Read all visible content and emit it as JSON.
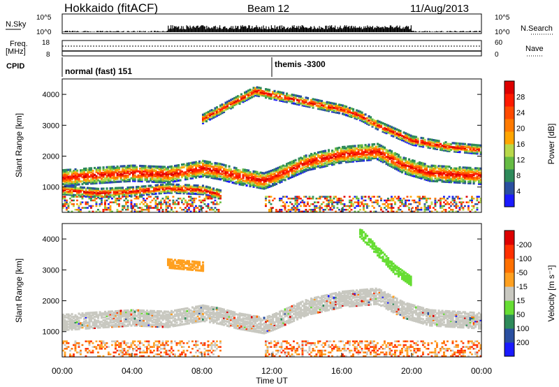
{
  "header": {
    "station": "Hokkaido (fitACF)",
    "beam": "Beam 12",
    "date": "11/Aug/2013"
  },
  "summary_panels": {
    "nsky_label": "N.Sky",
    "nsky_ticks": [
      "10^5",
      "10^0"
    ],
    "nsearch_label": "N.Search",
    "freq_label_line1": "Freq.",
    "freq_label_line2": "[MHz]",
    "freq_ticks": [
      "18",
      "8"
    ],
    "nave_label": "Nave",
    "nave_ticks": [
      "60",
      "0"
    ],
    "cpid_label": "CPID",
    "cpid_segments": [
      {
        "label": "normal (fast) 151",
        "start_hour": 0
      },
      {
        "label": "themis -3300",
        "start_hour": 12
      }
    ]
  },
  "colors": {
    "power_scale": [
      "#1a1aff",
      "#2a4fa0",
      "#2e8a5a",
      "#66bb44",
      "#b8d84a",
      "#ffa500",
      "#ff7a00",
      "#ff4a00",
      "#ff1a00",
      "#dd0000"
    ],
    "velocity_scale": [
      "#1a1aff",
      "#2a4fa0",
      "#2e8a5a",
      "#66dd33",
      "#c8c8c0",
      "#ffa020",
      "#ff7000",
      "#ff3000",
      "#dd0000"
    ]
  },
  "chart_data": [
    {
      "type": "heatmap",
      "title": "Power",
      "ylabel": "Slant Range [km]",
      "xlabel": "Time UT",
      "xlim_hours": [
        0,
        24
      ],
      "ylim": [
        180,
        4500
      ],
      "xticks": [
        "00:00",
        "04:00",
        "08:00",
        "12:00",
        "16:00",
        "20:00",
        "00:00"
      ],
      "yticks": [
        1000,
        2000,
        3000,
        4000
      ],
      "colorbar": {
        "label": "Power [dB]",
        "ticks": [
          4,
          8,
          12,
          16,
          20,
          24,
          28
        ]
      },
      "bands": [
        {
          "name": "E-region echo",
          "points": [
            [
              0,
              1300
            ],
            [
              2,
              1380
            ],
            [
              4,
              1450
            ],
            [
              6,
              1400
            ],
            [
              8,
              1600
            ],
            [
              9,
              1500
            ],
            [
              10,
              1350
            ],
            [
              11.5,
              1200
            ],
            [
              12,
              1300
            ],
            [
              14,
              1800
            ],
            [
              16,
              2050
            ],
            [
              18,
              2150
            ],
            [
              19.5,
              1700
            ],
            [
              21,
              1450
            ],
            [
              24,
              1350
            ]
          ]
        },
        {
          "name": "lower band",
          "points": [
            [
              0,
              900
            ],
            [
              2,
              800
            ],
            [
              4,
              850
            ],
            [
              6,
              950
            ],
            [
              8,
              900
            ],
            [
              9,
              750
            ]
          ]
        },
        {
          "name": "upper band",
          "points": [
            [
              8,
              3200
            ],
            [
              9,
              3500
            ],
            [
              10,
              3800
            ],
            [
              11,
              4100
            ],
            [
              16,
              3500
            ],
            [
              17,
              3300
            ],
            [
              18,
              3000
            ],
            [
              20,
              2500
            ],
            [
              22,
              2300
            ],
            [
              24,
              2200
            ]
          ]
        }
      ]
    },
    {
      "type": "heatmap",
      "title": "Velocity",
      "ylabel": "Slant Range [km]",
      "xlabel": "Time UT",
      "xlim_hours": [
        0,
        24
      ],
      "ylim": [
        180,
        4500
      ],
      "xticks": [
        "00:00",
        "04:00",
        "08:00",
        "12:00",
        "16:00",
        "20:00",
        "00:00"
      ],
      "yticks": [
        1000,
        2000,
        3000,
        4000
      ],
      "colorbar": {
        "label": "Velocity [m s⁻¹]",
        "ticks": [
          200,
          100,
          50,
          15,
          -15,
          -50,
          -100,
          -200
        ]
      },
      "bands": [
        {
          "name": "main band (near 0 m/s)",
          "points": [
            [
              0,
              1300
            ],
            [
              2,
              1380
            ],
            [
              4,
              1450
            ],
            [
              6,
              1400
            ],
            [
              8,
              1600
            ],
            [
              9,
              1500
            ],
            [
              10,
              1350
            ],
            [
              11.5,
              1200
            ],
            [
              12,
              1300
            ],
            [
              14,
              1800
            ],
            [
              16,
              2050
            ],
            [
              18,
              2150
            ],
            [
              19.5,
              1700
            ],
            [
              21,
              1450
            ],
            [
              24,
              1350
            ]
          ]
        },
        {
          "name": "positive velocity streak",
          "points": [
            [
              17,
              4200
            ],
            [
              18,
              3600
            ],
            [
              19,
              3000
            ],
            [
              20,
              2600
            ]
          ]
        },
        {
          "name": "negative velocity band",
          "points": [
            [
              6,
              3200
            ],
            [
              7,
              3150
            ],
            [
              8,
              3100
            ]
          ]
        }
      ]
    }
  ]
}
